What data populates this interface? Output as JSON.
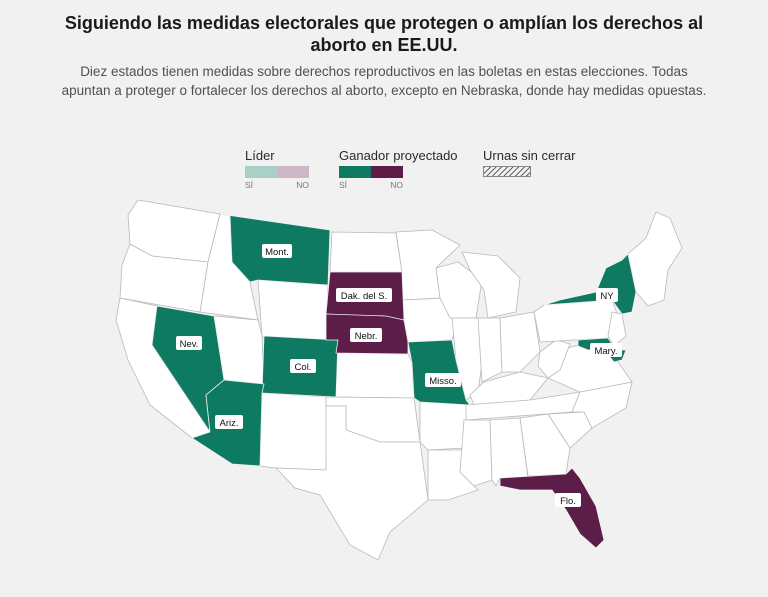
{
  "header": {
    "title": "Siguiendo las medidas electorales que protegen o amplían los derechos al aborto en EE.UU.",
    "subtitle": "Diez estados tienen medidas sobre derechos reproductivos en las boletas en estas elecciones. Todas apuntan a proteger o fortalecer los derechos al aborto, excepto en Nebraska, donde hay medidas opuestas."
  },
  "legend": {
    "leader": {
      "label": "Líder",
      "yes": "SÍ",
      "no": "NO",
      "yes_color": "#a9cfc6",
      "no_color": "#cbb7c6"
    },
    "projected": {
      "label": "Ganador proyectado",
      "yes": "SÍ",
      "no": "NO",
      "yes_color": "#0e7a62",
      "no_color": "#5c1e48"
    },
    "polls_open": {
      "label": "Urnas sin cerrar"
    }
  },
  "colors": {
    "yes": "#0e7a62",
    "no": "#5c1e48",
    "neutral": "#ffffff",
    "background": "#f1f1f1"
  },
  "states": [
    {
      "id": "MT",
      "label": "Mont.",
      "result": "yes"
    },
    {
      "id": "NV",
      "label": "Nev.",
      "result": "yes"
    },
    {
      "id": "CO",
      "label": "Col.",
      "result": "yes"
    },
    {
      "id": "AZ",
      "label": "Ariz.",
      "result": "yes"
    },
    {
      "id": "SD",
      "label": "Dak. del S.",
      "result": "no"
    },
    {
      "id": "NE",
      "label": "Nebr.",
      "result": "no"
    },
    {
      "id": "MO",
      "label": "Misso.",
      "result": "yes"
    },
    {
      "id": "NY",
      "label": "NY",
      "result": "yes"
    },
    {
      "id": "MD",
      "label": "Mary.",
      "result": "yes"
    },
    {
      "id": "FL",
      "label": "Flo.",
      "result": "no"
    }
  ]
}
